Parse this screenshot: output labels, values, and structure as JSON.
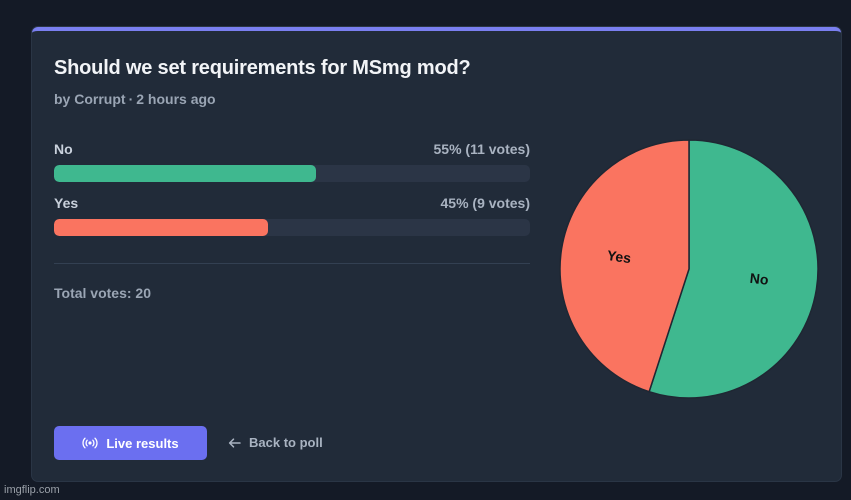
{
  "poll": {
    "title": "Should we set requirements for MSmg mod?",
    "author_prefix": "by",
    "author": "Corrupt",
    "separator": "·",
    "time_ago": "2 hours ago",
    "total_label": "Total votes: 20"
  },
  "options": [
    {
      "label": "No",
      "stat": "55% (11 votes)",
      "percent": 55,
      "color": "#3fb88f"
    },
    {
      "label": "Yes",
      "stat": "45% (9 votes)",
      "percent": 45,
      "color": "#fa7460"
    }
  ],
  "chart_data": {
    "type": "pie",
    "categories": [
      "No",
      "Yes"
    ],
    "values": [
      11,
      9
    ],
    "colors": [
      "#3fb88f",
      "#fa7460"
    ],
    "title": ""
  },
  "actions": {
    "live_results_label": "Live results",
    "live_icon": "broadcast-icon",
    "back_label": "Back to poll",
    "back_icon": "arrow-left-icon"
  },
  "watermark": "imgflip.com"
}
